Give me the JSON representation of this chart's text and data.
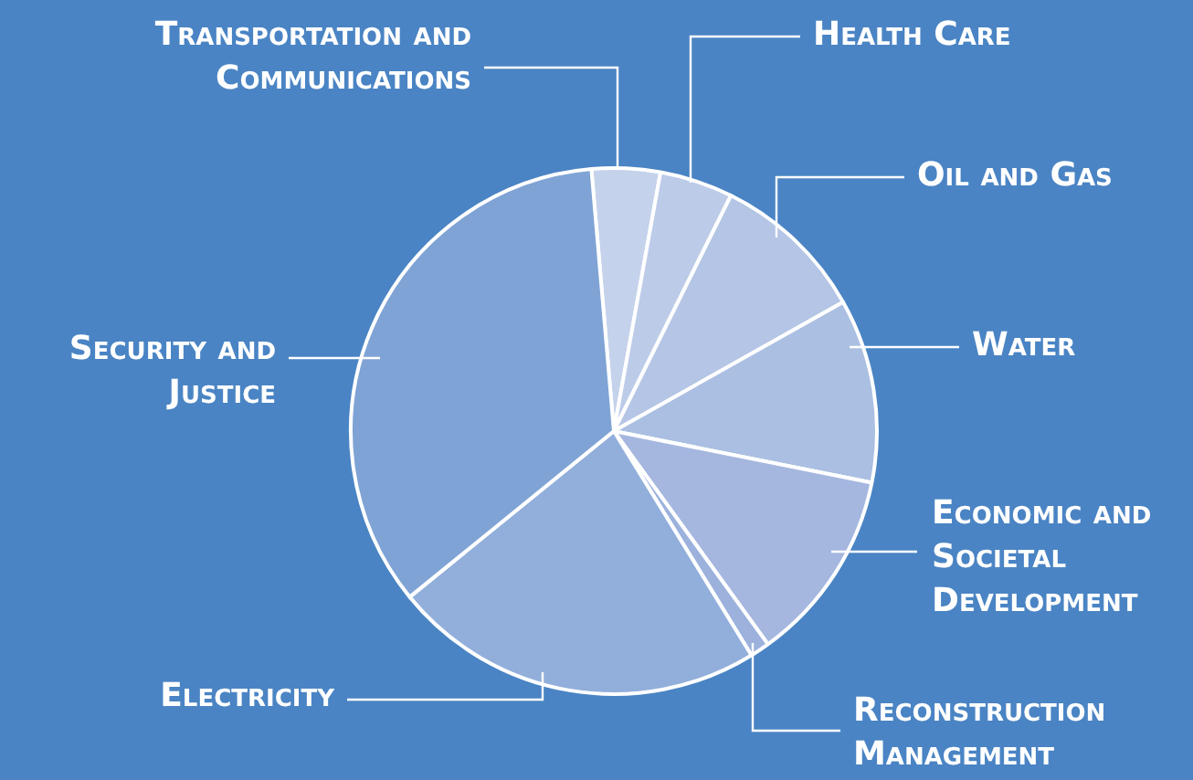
{
  "chart_data": {
    "type": "pie",
    "categories": [
      "Transportation and Communications",
      "Health Care",
      "Oil and Gas",
      "Water",
      "Economic and Societal Development",
      "Reconstruction Management",
      "Electricity",
      "Security and Justice"
    ],
    "values": [
      4.2,
      4.5,
      9.5,
      11.3,
      11.9,
      1.2,
      22.9,
      34.5
    ],
    "colors": [
      "#c5d2eb",
      "#bccbe8",
      "#b4c5e5",
      "#abbfe2",
      "#a5b7df",
      "#9cb2dd",
      "#92afdb",
      "#7fa3d5"
    ],
    "legend": false
  }
}
